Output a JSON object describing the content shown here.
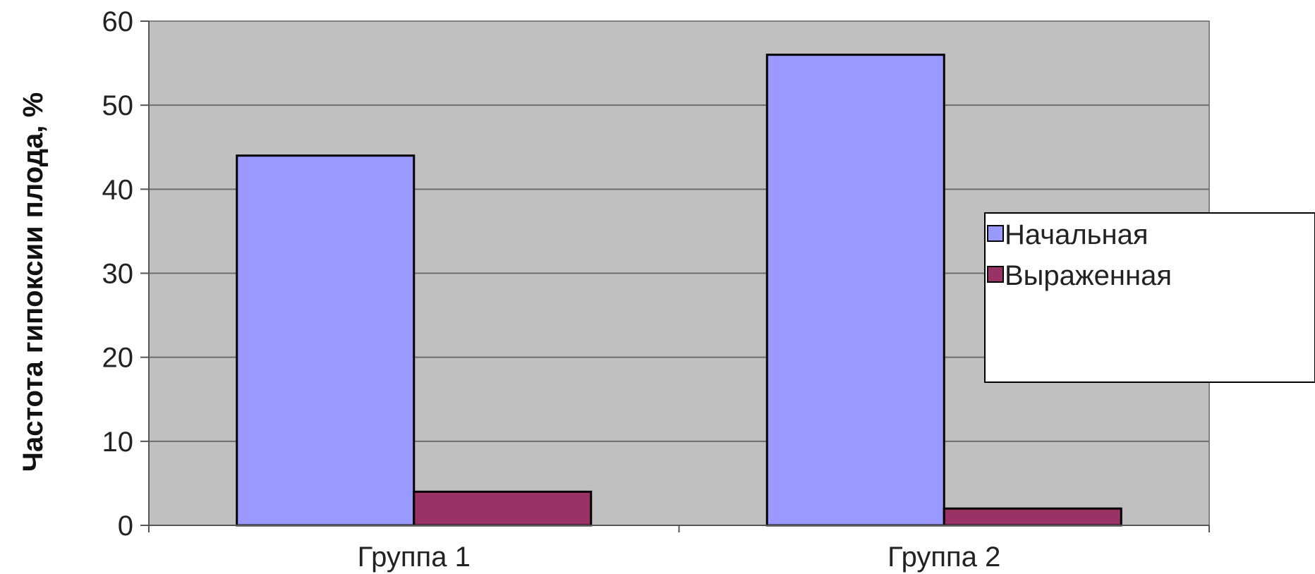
{
  "chart_data": {
    "type": "bar",
    "title": "",
    "xlabel": "",
    "ylabel": "Частота гипоксии плода, %",
    "categories": [
      "Группа 1",
      "Группа 2"
    ],
    "series": [
      {
        "name": "Начальная",
        "values": [
          44,
          56
        ],
        "color": "#9999ff"
      },
      {
        "name": "Выраженная",
        "values": [
          4,
          2
        ],
        "color": "#993366"
      }
    ],
    "ylim": [
      0,
      60
    ],
    "yticks": [
      0,
      10,
      20,
      30,
      40,
      50,
      60
    ],
    "grid": true,
    "legend": "right",
    "plot_background": "#c0c0c0"
  }
}
